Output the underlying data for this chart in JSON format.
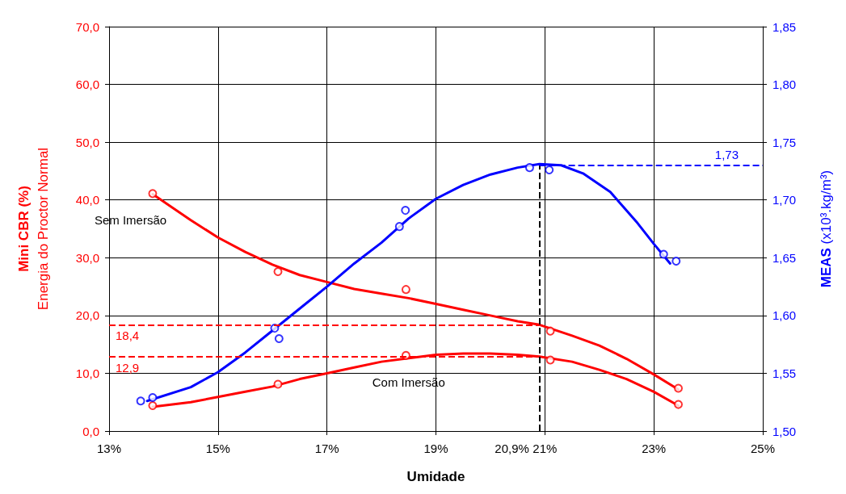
{
  "chart_data": {
    "type": "scatter",
    "xlabel": "Umidade",
    "ylabel": "Mini CBR (%)\nEnergia do Proctor Normal",
    "y2label": "MEAS (x10³.kg/m³)",
    "xlim": [
      13,
      25
    ],
    "xticks": [
      {
        "value": 13,
        "label": "13%"
      },
      {
        "value": 15,
        "label": "15%"
      },
      {
        "value": 17,
        "label": "17%"
      },
      {
        "value": 19,
        "label": "19%"
      },
      {
        "value": 21,
        "label": "21%"
      },
      {
        "value": 23,
        "label": "23%"
      },
      {
        "value": 25,
        "label": "25%"
      }
    ],
    "ylim": [
      0,
      70
    ],
    "yticks": [
      {
        "value": 0,
        "label": "0,0"
      },
      {
        "value": 10,
        "label": "10,0"
      },
      {
        "value": 20,
        "label": "20,0"
      },
      {
        "value": 30,
        "label": "30,0"
      },
      {
        "value": 40,
        "label": "40,0"
      },
      {
        "value": 50,
        "label": "50,0"
      },
      {
        "value": 60,
        "label": "60,0"
      },
      {
        "value": 70,
        "label": "70,0"
      }
    ],
    "y2lim": [
      1.5,
      1.85
    ],
    "y2ticks": [
      {
        "value": 1.5,
        "label": "1,50"
      },
      {
        "value": 1.55,
        "label": "1,55"
      },
      {
        "value": 1.6,
        "label": "1,60"
      },
      {
        "value": 1.65,
        "label": "1,65"
      },
      {
        "value": 1.7,
        "label": "1,70"
      },
      {
        "value": 1.75,
        "label": "1,75"
      },
      {
        "value": 1.8,
        "label": "1,80"
      },
      {
        "value": 1.85,
        "label": "1,85"
      }
    ],
    "grid": true,
    "legend": false,
    "series": [
      {
        "color": "#ff0000",
        "marker": "circle",
        "x": [
          13.8,
          16.1,
          18.45,
          21.1,
          23.45
        ],
        "values": [
          41.1,
          27.6,
          24.5,
          17.3,
          7.4
        ]
      },
      {
        "color": "#ff0000",
        "marker": "circle",
        "x": [
          13.8,
          16.1,
          18.45,
          21.1,
          23.45
        ],
        "values": [
          4.4,
          8.1,
          13.1,
          12.3,
          4.6
        ]
      },
      {
        "color": "#0000ff",
        "marker": "circle",
        "axis": "y2",
        "x": [
          13.58,
          13.8,
          16.04,
          16.12,
          18.33,
          18.44,
          20.72,
          21.08,
          23.18,
          23.41
        ],
        "values": [
          1.526,
          1.529,
          1.589,
          1.58,
          1.677,
          1.691,
          1.728,
          1.726,
          1.653,
          1.647
        ]
      },
      {
        "type": "line",
        "name": "Sem Imersão",
        "color": "#ff0000",
        "marker": "none",
        "line_style": "solid",
        "x": [
          13.8,
          14.5,
          15,
          15.5,
          16,
          16.5,
          17,
          17.5,
          18,
          18.5,
          19,
          19.5,
          20,
          20.5,
          20.9,
          21.5,
          22,
          22.5,
          23,
          23.45
        ],
        "values": [
          41,
          36.5,
          33.5,
          31,
          28.8,
          27,
          25.8,
          24.6,
          23.8,
          23,
          22,
          21,
          20,
          19,
          18.4,
          16.5,
          14.8,
          12.5,
          9.8,
          7.2
        ]
      },
      {
        "type": "line",
        "name": "Com Imersão",
        "color": "#ff0000",
        "marker": "none",
        "line_style": "solid",
        "x": [
          13.8,
          14.5,
          15,
          15.5,
          16,
          16.5,
          17,
          17.5,
          18,
          18.5,
          19,
          19.5,
          20,
          20.5,
          20.9,
          21.5,
          22,
          22.5,
          23,
          23.45
        ],
        "values": [
          4.2,
          5,
          5.9,
          6.8,
          7.7,
          9,
          10,
          11,
          12,
          12.6,
          13.2,
          13.4,
          13.4,
          13.2,
          12.9,
          12,
          10.6,
          9,
          6.8,
          4.4
        ]
      },
      {
        "type": "line",
        "color": "#0000ff",
        "marker": "none",
        "line_style": "solid",
        "axis": "y2",
        "x": [
          13.7,
          14.5,
          15,
          15.5,
          16,
          16.5,
          17,
          17.5,
          18,
          18.5,
          19,
          19.5,
          20,
          20.5,
          20.9,
          21.3,
          21.7,
          22.2,
          22.7,
          23,
          23.3
        ],
        "values": [
          1.526,
          1.538,
          1.551,
          1.568,
          1.587,
          1.606,
          1.625,
          1.645,
          1.663,
          1.684,
          1.701,
          1.713,
          1.722,
          1.728,
          1.731,
          1.73,
          1.723,
          1.707,
          1.68,
          1.662,
          1.645
        ]
      }
    ],
    "ref_lines": [
      {
        "axis": "y",
        "value": 18.4,
        "label": "18,4",
        "color": "#ff0000",
        "line_style": "dashed"
      },
      {
        "axis": "y",
        "value": 12.9,
        "label": "12,9",
        "color": "#ff0000",
        "line_style": "dashed"
      },
      {
        "axis": "x",
        "value": 20.9,
        "label": "20,9%",
        "color": "#000000",
        "line_style": "dashed"
      },
      {
        "axis": "y2",
        "value": 1.73,
        "label": "1,73",
        "color": "#0000ff",
        "line_style": "dashed"
      }
    ]
  }
}
